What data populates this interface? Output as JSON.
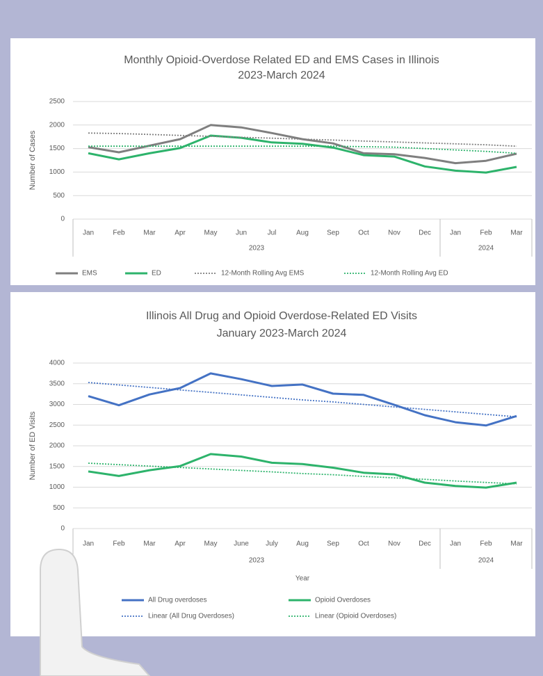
{
  "chart_data": [
    {
      "type": "line",
      "title": [
        "Monthly Opioid-Overdose Related ED and EMS Cases in Illinois",
        "2023-March 2024"
      ],
      "y_label": "Number of Cases",
      "categories": [
        "Jan",
        "Feb",
        "Mar",
        "Apr",
        "May",
        "Jun",
        "Jul",
        "Aug",
        "Sep",
        "Oct",
        "Nov",
        "Dec",
        "Jan",
        "Feb",
        "Mar"
      ],
      "groups": [
        "2023",
        "2024"
      ],
      "ylim": [
        0,
        2500
      ],
      "yticks": [
        0,
        500,
        1000,
        1500,
        2000,
        2500
      ],
      "grid": true,
      "series": [
        {
          "name": "EMS",
          "color": "#7f7f7f",
          "dashed": false,
          "values": [
            1530,
            1420,
            1560,
            1700,
            2000,
            1950,
            1830,
            1700,
            1610,
            1400,
            1380,
            1300,
            1190,
            1240,
            1390
          ]
        },
        {
          "name": "ED",
          "color": "#2db36b",
          "dashed": false,
          "values": [
            1400,
            1270,
            1400,
            1510,
            1775,
            1730,
            1630,
            1600,
            1520,
            1360,
            1330,
            1120,
            1030,
            990,
            1110
          ]
        },
        {
          "name": "12-Month Rolling Avg EMS",
          "color": "#7f7f7f",
          "dashed": true,
          "values": [
            1830,
            1820,
            1800,
            1780,
            1760,
            1740,
            1720,
            1700,
            1680,
            1660,
            1640,
            1620,
            1600,
            1580,
            1550
          ]
        },
        {
          "name": "12-Month Rolling Avg ED",
          "color": "#2db36b",
          "dashed": true,
          "values": [
            1550,
            1550,
            1550,
            1550,
            1550,
            1550,
            1550,
            1550,
            1550,
            1540,
            1530,
            1500,
            1470,
            1440,
            1400
          ]
        }
      ]
    },
    {
      "type": "line",
      "title": [
        "Illinois All Drug and Opioid Overdose-Related ED Visits",
        "January 2023-March 2024"
      ],
      "y_label": "Number of ED Visits",
      "x_label": "Year",
      "categories": [
        "Jan",
        "Feb",
        "Mar",
        "Apr",
        "May",
        "June",
        "July",
        "Aug",
        "Sep",
        "Oct",
        "Nov",
        "Dec",
        "Jan",
        "Feb",
        "Mar"
      ],
      "groups": [
        "2023",
        "2024"
      ],
      "ylim": [
        0,
        4000
      ],
      "yticks": [
        0,
        500,
        1000,
        1500,
        2000,
        2500,
        3000,
        3500,
        4000
      ],
      "grid": true,
      "series": [
        {
          "name": "All Drug overdoses",
          "color": "#4472c4",
          "dashed": false,
          "values": [
            3200,
            2980,
            3240,
            3395,
            3750,
            3610,
            3445,
            3480,
            3260,
            3230,
            2990,
            2740,
            2570,
            2490,
            2720
          ]
        },
        {
          "name": "Opioid Overdoses",
          "color": "#2db36b",
          "dashed": false,
          "values": [
            1380,
            1270,
            1410,
            1510,
            1800,
            1740,
            1590,
            1560,
            1470,
            1350,
            1310,
            1110,
            1030,
            990,
            1110
          ]
        },
        {
          "name": "Linear (All Drug Overdoses)",
          "color": "#4472c4",
          "dashed": true,
          "values": [
            3530,
            3470,
            3410,
            3350,
            3290,
            3230,
            3170,
            3110,
            3060,
            3000,
            2940,
            2880,
            2820,
            2760,
            2700
          ]
        },
        {
          "name": "Linear (Opioid Overdoses)",
          "color": "#2db36b",
          "dashed": true,
          "values": [
            1580,
            1545,
            1510,
            1475,
            1440,
            1405,
            1370,
            1330,
            1300,
            1260,
            1225,
            1190,
            1150,
            1115,
            1080
          ]
        }
      ]
    }
  ]
}
